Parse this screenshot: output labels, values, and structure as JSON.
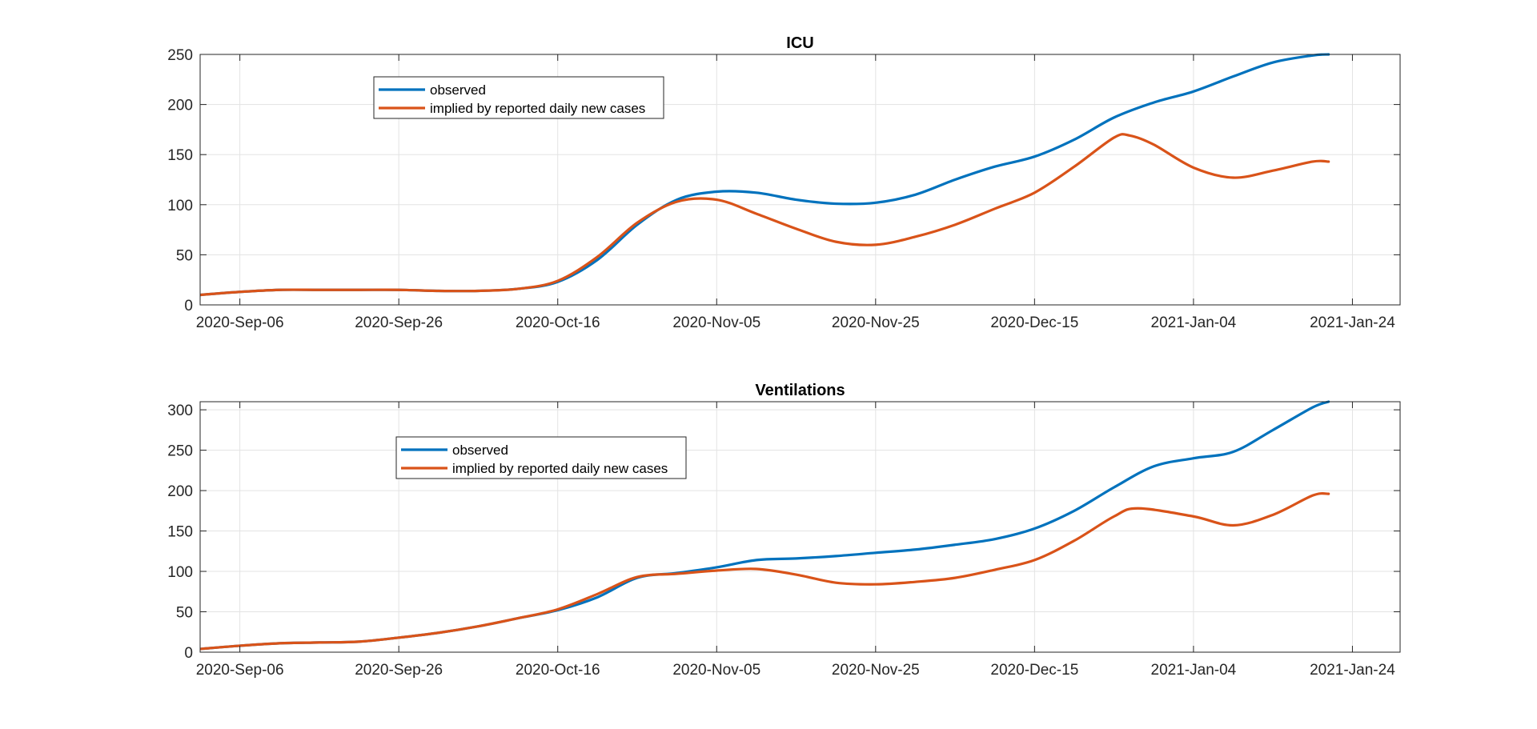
{
  "chart_data": [
    {
      "type": "line",
      "title": "ICU",
      "xlabel": "",
      "ylabel": "",
      "x_ticks": [
        "2020-Sep-06",
        "2020-Sep-26",
        "2020-Oct-16",
        "2020-Nov-05",
        "2020-Nov-25",
        "2020-Dec-15",
        "2021-Jan-04",
        "2021-Jan-24"
      ],
      "y_ticks": [
        0,
        50,
        100,
        150,
        200,
        250
      ],
      "xlim": [
        "2020-Sep-01",
        "2021-Jan-30"
      ],
      "ylim": [
        0,
        250
      ],
      "grid": true,
      "legend_position": "top-left",
      "series": [
        {
          "name": "observed",
          "color": "#0072BD",
          "points": [
            [
              "2020-Sep-01",
              10
            ],
            [
              "2020-Sep-06",
              13
            ],
            [
              "2020-Sep-11",
              15
            ],
            [
              "2020-Sep-16",
              15
            ],
            [
              "2020-Sep-21",
              15
            ],
            [
              "2020-Sep-26",
              15
            ],
            [
              "2020-Oct-01",
              14
            ],
            [
              "2020-Oct-06",
              14
            ],
            [
              "2020-Oct-11",
              16
            ],
            [
              "2020-Oct-16",
              23
            ],
            [
              "2020-Oct-21",
              45
            ],
            [
              "2020-Oct-26",
              80
            ],
            [
              "2020-Oct-31",
              105
            ],
            [
              "2020-Nov-05",
              113
            ],
            [
              "2020-Nov-10",
              112
            ],
            [
              "2020-Nov-15",
              105
            ],
            [
              "2020-Nov-20",
              101
            ],
            [
              "2020-Nov-25",
              102
            ],
            [
              "2020-Nov-30",
              110
            ],
            [
              "2020-Dec-05",
              125
            ],
            [
              "2020-Dec-10",
              138
            ],
            [
              "2020-Dec-15",
              148
            ],
            [
              "2020-Dec-20",
              165
            ],
            [
              "2020-Dec-25",
              187
            ],
            [
              "2020-Dec-30",
              202
            ],
            [
              "2021-Jan-04",
              213
            ],
            [
              "2021-Jan-09",
              228
            ],
            [
              "2021-Jan-14",
              242
            ],
            [
              "2021-Jan-19",
              249
            ],
            [
              "2021-Jan-21",
              250
            ]
          ]
        },
        {
          "name": "implied by reported daily new cases",
          "color": "#D95319",
          "points": [
            [
              "2020-Sep-01",
              10
            ],
            [
              "2020-Sep-06",
              13
            ],
            [
              "2020-Sep-11",
              15
            ],
            [
              "2020-Sep-16",
              15
            ],
            [
              "2020-Sep-21",
              15
            ],
            [
              "2020-Sep-26",
              15
            ],
            [
              "2020-Oct-01",
              14
            ],
            [
              "2020-Oct-06",
              14
            ],
            [
              "2020-Oct-11",
              16
            ],
            [
              "2020-Oct-16",
              24
            ],
            [
              "2020-Oct-21",
              48
            ],
            [
              "2020-Oct-26",
              82
            ],
            [
              "2020-Oct-31",
              103
            ],
            [
              "2020-Nov-05",
              105
            ],
            [
              "2020-Nov-10",
              91
            ],
            [
              "2020-Nov-15",
              76
            ],
            [
              "2020-Nov-20",
              63
            ],
            [
              "2020-Nov-25",
              60
            ],
            [
              "2020-Nov-30",
              68
            ],
            [
              "2020-Dec-05",
              80
            ],
            [
              "2020-Dec-10",
              96
            ],
            [
              "2020-Dec-15",
              112
            ],
            [
              "2020-Dec-20",
              138
            ],
            [
              "2020-Dec-25",
              167
            ],
            [
              "2020-Dec-27",
              169
            ],
            [
              "2020-Dec-30",
              160
            ],
            [
              "2021-Jan-04",
              137
            ],
            [
              "2021-Jan-09",
              127
            ],
            [
              "2021-Jan-14",
              134
            ],
            [
              "2021-Jan-19",
              143
            ],
            [
              "2021-Jan-21",
              143
            ]
          ]
        }
      ]
    },
    {
      "type": "line",
      "title": "Ventilations",
      "xlabel": "",
      "ylabel": "",
      "x_ticks": [
        "2020-Sep-06",
        "2020-Sep-26",
        "2020-Oct-16",
        "2020-Nov-05",
        "2020-Nov-25",
        "2020-Dec-15",
        "2021-Jan-04",
        "2021-Jan-24"
      ],
      "y_ticks": [
        0,
        50,
        100,
        150,
        200,
        250,
        300
      ],
      "xlim": [
        "2020-Sep-01",
        "2021-Jan-30"
      ],
      "ylim": [
        0,
        310
      ],
      "grid": true,
      "legend_position": "top-left",
      "series": [
        {
          "name": "observed",
          "color": "#0072BD",
          "points": [
            [
              "2020-Sep-01",
              4
            ],
            [
              "2020-Sep-06",
              8
            ],
            [
              "2020-Sep-11",
              11
            ],
            [
              "2020-Sep-16",
              12
            ],
            [
              "2020-Sep-21",
              13
            ],
            [
              "2020-Sep-26",
              18
            ],
            [
              "2020-Oct-01",
              24
            ],
            [
              "2020-Oct-06",
              32
            ],
            [
              "2020-Oct-11",
              42
            ],
            [
              "2020-Oct-16",
              52
            ],
            [
              "2020-Oct-21",
              68
            ],
            [
              "2020-Oct-26",
              92
            ],
            [
              "2020-Oct-31",
              98
            ],
            [
              "2020-Nov-05",
              105
            ],
            [
              "2020-Nov-10",
              114
            ],
            [
              "2020-Nov-15",
              116
            ],
            [
              "2020-Nov-20",
              119
            ],
            [
              "2020-Nov-25",
              123
            ],
            [
              "2020-Nov-30",
              127
            ],
            [
              "2020-Dec-05",
              133
            ],
            [
              "2020-Dec-10",
              140
            ],
            [
              "2020-Dec-15",
              153
            ],
            [
              "2020-Dec-20",
              175
            ],
            [
              "2020-Dec-25",
              204
            ],
            [
              "2020-Dec-30",
              230
            ],
            [
              "2021-Jan-04",
              240
            ],
            [
              "2021-Jan-09",
              248
            ],
            [
              "2021-Jan-14",
              275
            ],
            [
              "2021-Jan-19",
              303
            ],
            [
              "2021-Jan-21",
              310
            ]
          ]
        },
        {
          "name": "implied by reported daily new cases",
          "color": "#D95319",
          "points": [
            [
              "2020-Sep-01",
              4
            ],
            [
              "2020-Sep-06",
              8
            ],
            [
              "2020-Sep-11",
              11
            ],
            [
              "2020-Sep-16",
              12
            ],
            [
              "2020-Sep-21",
              13
            ],
            [
              "2020-Sep-26",
              18
            ],
            [
              "2020-Oct-01",
              24
            ],
            [
              "2020-Oct-06",
              32
            ],
            [
              "2020-Oct-11",
              42
            ],
            [
              "2020-Oct-16",
              53
            ],
            [
              "2020-Oct-21",
              72
            ],
            [
              "2020-Oct-26",
              93
            ],
            [
              "2020-Oct-31",
              97
            ],
            [
              "2020-Nov-05",
              101
            ],
            [
              "2020-Nov-10",
              103
            ],
            [
              "2020-Nov-15",
              96
            ],
            [
              "2020-Nov-20",
              86
            ],
            [
              "2020-Nov-25",
              84
            ],
            [
              "2020-Nov-30",
              87
            ],
            [
              "2020-Dec-05",
              92
            ],
            [
              "2020-Dec-10",
              102
            ],
            [
              "2020-Dec-15",
              114
            ],
            [
              "2020-Dec-20",
              138
            ],
            [
              "2020-Dec-25",
              168
            ],
            [
              "2020-Dec-28",
              178
            ],
            [
              "2021-Jan-04",
              168
            ],
            [
              "2021-Jan-09",
              157
            ],
            [
              "2021-Jan-14",
              170
            ],
            [
              "2021-Jan-19",
              194
            ],
            [
              "2021-Jan-21",
              196
            ]
          ]
        }
      ]
    }
  ]
}
